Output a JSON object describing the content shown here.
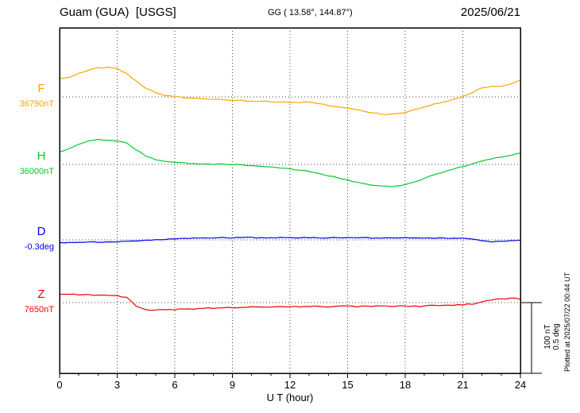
{
  "header": {
    "station_title": "Guam (GUA)  [USGS]",
    "coords": "GG ( 13.58°, 144.87°)",
    "date": "2025/06/21"
  },
  "scale_bar": {
    "nt_label": "100 nT",
    "deg_label": "0.5 deg"
  },
  "plotted_note": "Plotted at 2025/07/22 00:44 UT",
  "chart_data": {
    "type": "line",
    "title": "Guam (GUA) [USGS] magnetogram 2025/06/21",
    "xlabel": "U T (hour)",
    "xlim": [
      0,
      24
    ],
    "x_major_ticks": [
      0,
      3,
      6,
      9,
      12,
      15,
      18,
      21,
      24
    ],
    "x_minor_step_hours": 1,
    "sample_step_hours": 0.5,
    "grid": "dotted vertical lines at major ticks; dotted horizontal baseline per trace",
    "legend_position": "left margin, one colored letter + baseline value per trace",
    "scale": {
      "nT_per_division": 100,
      "deg_per_division": 0.5
    },
    "series": [
      {
        "name": "F",
        "unit": "nT",
        "color": "#FFA500",
        "baseline_value": 36790,
        "baseline_label": "36790nT",
        "delta_from_baseline": [
          25,
          28,
          33,
          38,
          41,
          42,
          40,
          33,
          22,
          12,
          6,
          2,
          0,
          -1,
          -2,
          -3,
          -3,
          -4,
          -5,
          -5,
          -6,
          -6,
          -7,
          -7,
          -8,
          -8,
          -7,
          -9,
          -12,
          -14,
          -16,
          -18,
          -21,
          -23,
          -25,
          -24,
          -22,
          -18,
          -14,
          -10,
          -7,
          -3,
          0,
          6,
          13,
          15,
          15,
          18,
          24
        ]
      },
      {
        "name": "H",
        "unit": "nT",
        "color": "#00C832",
        "baseline_value": 36000,
        "baseline_label": "36000nT",
        "delta_from_baseline": [
          18,
          22,
          28,
          33,
          35,
          34,
          33,
          30,
          20,
          12,
          7,
          4,
          3,
          2,
          1,
          0,
          0,
          1,
          0,
          -1,
          -2,
          -3,
          -4,
          -5,
          -6,
          -8,
          -10,
          -13,
          -16,
          -19,
          -22,
          -25,
          -28,
          -30,
          -31,
          -31,
          -29,
          -25,
          -20,
          -15,
          -11,
          -7,
          -3,
          1,
          5,
          8,
          10,
          13,
          16
        ]
      },
      {
        "name": "D",
        "unit": "deg",
        "color": "#0000EE",
        "baseline_value": -0.3,
        "baseline_label": "-0.3deg",
        "delta_from_baseline": [
          -0.018,
          -0.018,
          -0.017,
          -0.017,
          -0.016,
          -0.016,
          -0.015,
          -0.012,
          -0.008,
          -0.004,
          0,
          0.004,
          0.008,
          0.01,
          0.012,
          0.013,
          0.014,
          0.015,
          0.015,
          0.016,
          0.016,
          0.015,
          0.015,
          0.016,
          0.016,
          0.015,
          0.015,
          0.014,
          0.015,
          0.015,
          0.014,
          0.015,
          0.015,
          0.014,
          0.014,
          0.015,
          0.015,
          0.014,
          0.013,
          0.012,
          0.012,
          0.011,
          0.01,
          0.004,
          -0.008,
          -0.014,
          -0.01,
          -0.004,
          -0.001
        ]
      },
      {
        "name": "Z",
        "unit": "nT",
        "color": "#EE0000",
        "baseline_value": 7650,
        "baseline_label": "7650nT",
        "delta_from_baseline": [
          12,
          12,
          11,
          11,
          11,
          10,
          10,
          7,
          -5,
          -10,
          -11,
          -10,
          -10,
          -9,
          -9,
          -8,
          -8,
          -7,
          -7,
          -7,
          -6,
          -6,
          -6,
          -6,
          -6,
          -6,
          -6,
          -5,
          -6,
          -5,
          -5,
          -6,
          -5,
          -5,
          -5,
          -5,
          -5,
          -5,
          -5,
          -4,
          -4,
          -4,
          -3,
          -2,
          1,
          4,
          5,
          6,
          5
        ]
      }
    ]
  }
}
